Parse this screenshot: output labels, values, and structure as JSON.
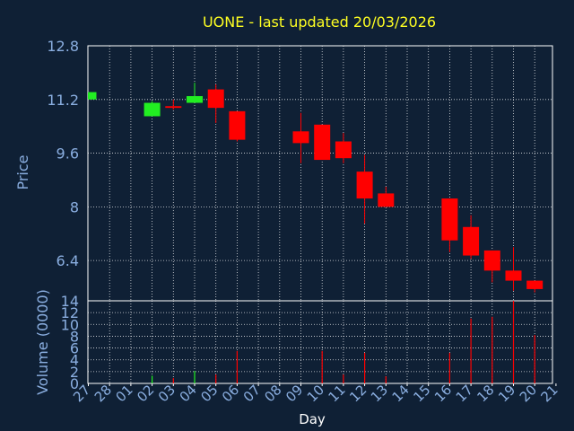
{
  "chart_data": {
    "type": "candlestick",
    "title": "UONE - last updated 20/03/2026",
    "xlabel": "Day",
    "ylabel": "Price",
    "volume_label": "Volume (0000)",
    "x_ticks": [
      "27",
      "28",
      "01",
      "02",
      "03",
      "04",
      "05",
      "06",
      "07",
      "08",
      "09",
      "10",
      "11",
      "12",
      "13",
      "14",
      "15",
      "16",
      "17",
      "18",
      "19",
      "20",
      "21"
    ],
    "y_ticks": [
      "12.8",
      "11.2",
      "9.6",
      "8",
      "6.4"
    ],
    "ylim": [
      5.2,
      12.8
    ],
    "volume_ticks": [
      "14",
      "12",
      "10",
      "8",
      "6",
      "4",
      "2",
      "0"
    ],
    "volume_ylim": [
      0,
      14
    ],
    "grid": true,
    "colors": {
      "up": "#22ee22",
      "down": "#ff0000",
      "grid": "#ffffff",
      "background": "#0f2035",
      "title": "#ffff22",
      "axis": "#8aaee0"
    },
    "candles": [
      {
        "day": "27",
        "open": 11.2,
        "high": 11.42,
        "low": 11.2,
        "close": 11.42,
        "volume": 0.0
      },
      {
        "day": "02",
        "open": 10.7,
        "high": 11.15,
        "low": 10.7,
        "close": 11.1,
        "volume": 1.3
      },
      {
        "day": "03",
        "open": 11.0,
        "high": 11.2,
        "low": 10.9,
        "close": 10.95,
        "volume": 0.9
      },
      {
        "day": "04",
        "open": 11.1,
        "high": 11.7,
        "low": 11.1,
        "close": 11.3,
        "volume": 2.1
      },
      {
        "day": "05",
        "open": 11.5,
        "high": 11.65,
        "low": 10.5,
        "close": 10.95,
        "volume": 1.5
      },
      {
        "day": "06",
        "open": 10.85,
        "high": 10.85,
        "low": 9.95,
        "close": 10.0,
        "volume": 5.5
      },
      {
        "day": "09",
        "open": 10.25,
        "high": 10.8,
        "low": 9.3,
        "close": 9.9,
        "volume": 0.0
      },
      {
        "day": "10",
        "open": 10.45,
        "high": 10.45,
        "low": 9.4,
        "close": 9.4,
        "volume": 5.5
      },
      {
        "day": "11",
        "open": 9.95,
        "high": 10.2,
        "low": 9.3,
        "close": 9.45,
        "volume": 1.5
      },
      {
        "day": "12",
        "open": 9.05,
        "high": 9.55,
        "low": 7.5,
        "close": 8.25,
        "volume": 5.2
      },
      {
        "day": "13",
        "open": 8.4,
        "high": 8.6,
        "low": 8.0,
        "close": 8.0,
        "volume": 1.2
      },
      {
        "day": "16",
        "open": 8.25,
        "high": 8.25,
        "low": 6.65,
        "close": 7.0,
        "volume": 5.2
      },
      {
        "day": "17",
        "open": 7.4,
        "high": 7.75,
        "low": 6.45,
        "close": 6.55,
        "volume": 11.0
      },
      {
        "day": "18",
        "open": 6.7,
        "high": 6.7,
        "low": 5.75,
        "close": 6.1,
        "volume": 11.3
      },
      {
        "day": "19",
        "open": 6.1,
        "high": 6.8,
        "low": 5.5,
        "close": 5.8,
        "volume": 14.0
      },
      {
        "day": "20",
        "open": 5.8,
        "high": 5.8,
        "low": 5.45,
        "close": 5.55,
        "volume": 8.2
      }
    ]
  }
}
